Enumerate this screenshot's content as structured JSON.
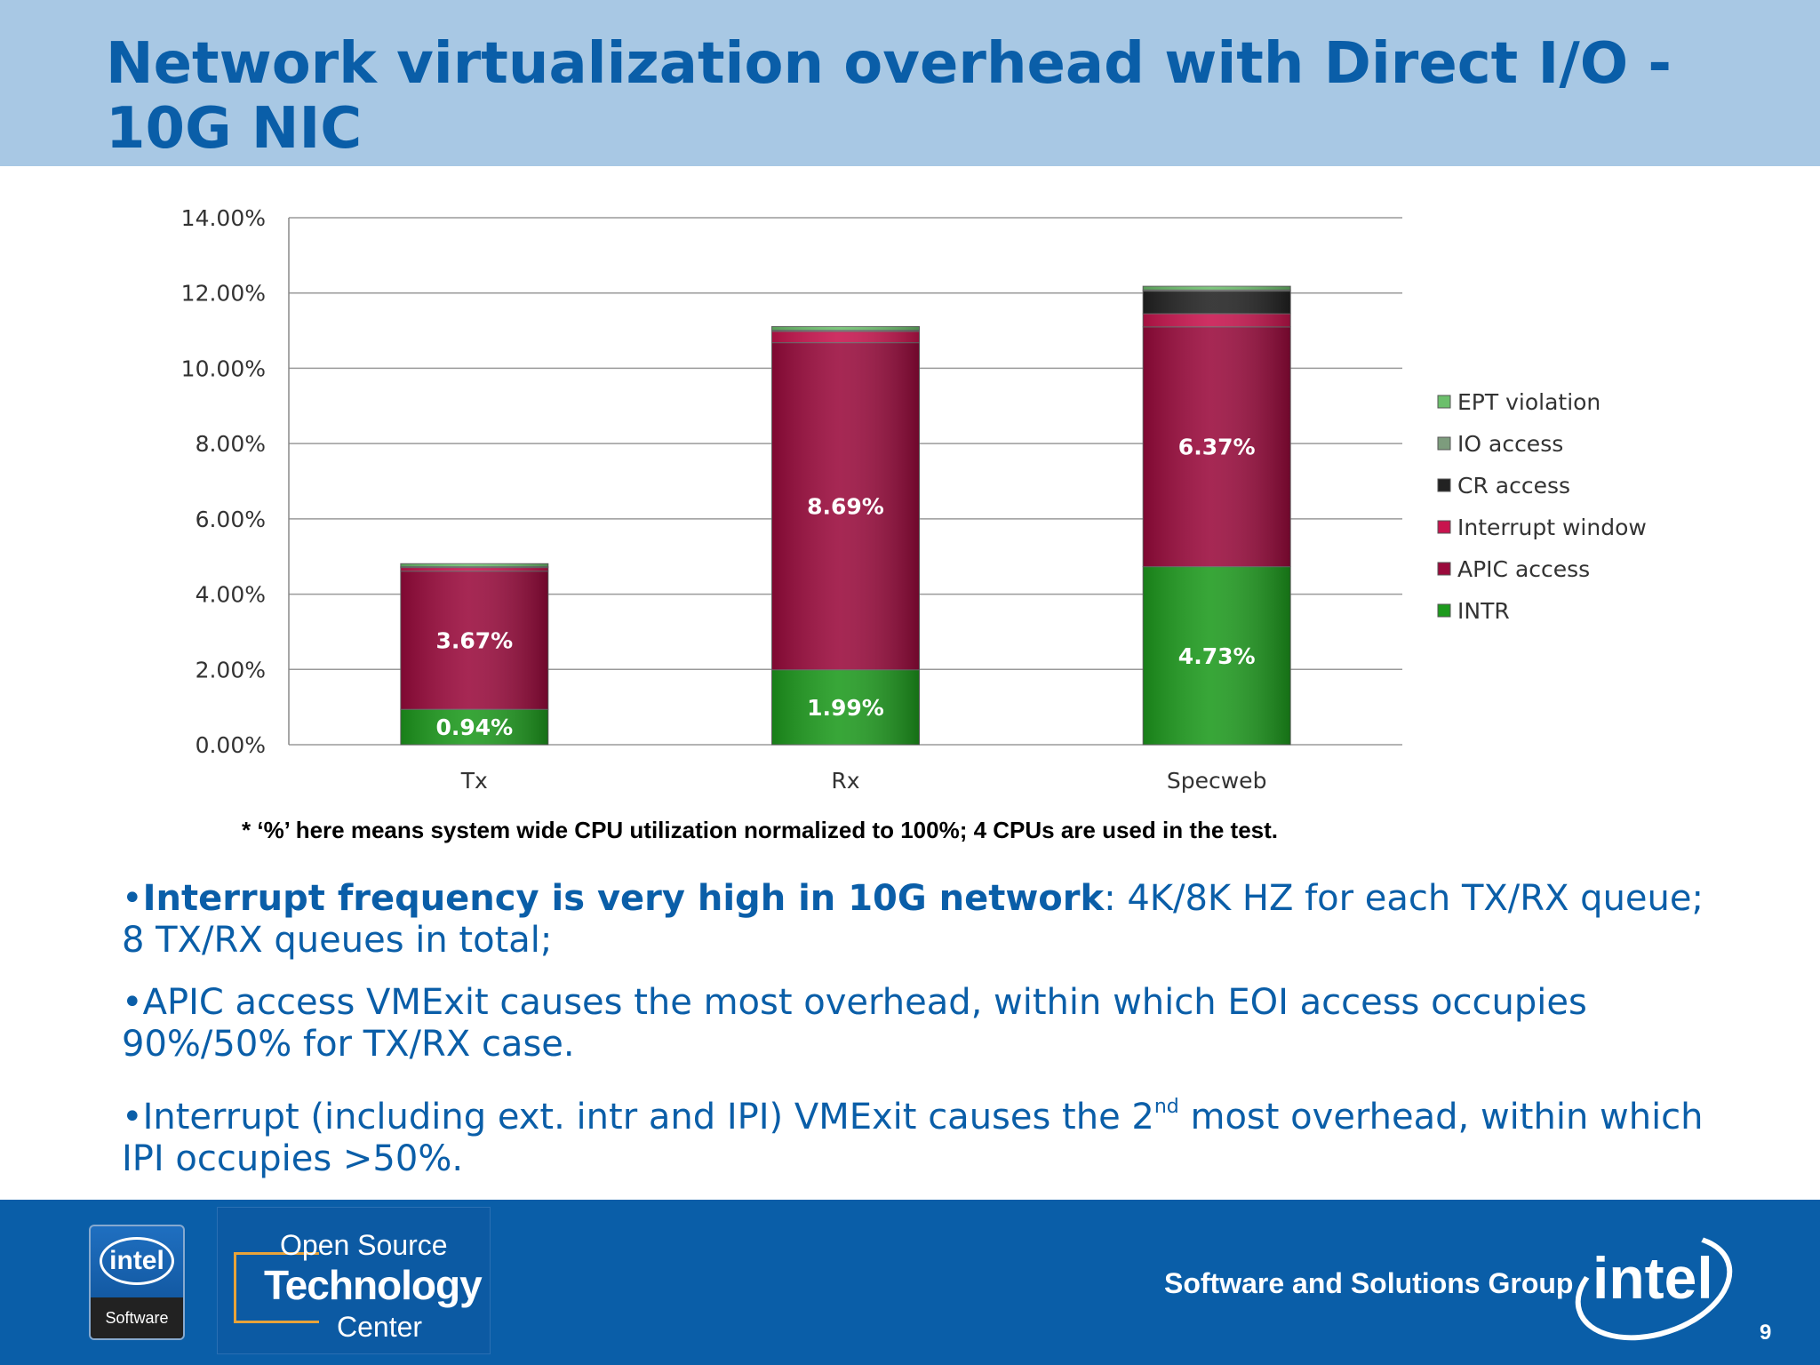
{
  "slide": {
    "title": "Network virtualization overhead with Direct I/O - 10G NIC",
    "footnote": "* ‘%’ here means system wide CPU utilization normalized to 100%; 4 CPUs are used in the test.",
    "bullets": [
      {
        "bold": "Interrupt frequency is very high in 10G network",
        "text": ": 4K/8K HZ for each TX/RX queue; 8 TX/RX queues in total;"
      },
      {
        "bold": "",
        "text": "APIC access VMExit causes the most overhead, within which EOI access occupies 90%/50% for TX/RX case."
      },
      {
        "bold": "",
        "text": "Interrupt (including ext. intr and IPI) VMExit causes the 2",
        "sup": "nd",
        "text_after": " most overhead, within which IPI occupies >50%."
      }
    ]
  },
  "footer": {
    "logo_left_word": "intel",
    "logo_left_sub": "Software",
    "ostc_line1": "Open Source",
    "ostc_line2": "Technology",
    "ostc_line3": "Center",
    "group_name": "Software and Solutions Group",
    "logo_right_word": "intel",
    "page_number": "9"
  },
  "chart_data": {
    "type": "bar",
    "stacked": true,
    "categories": [
      "Tx",
      "Rx",
      "Specweb"
    ],
    "ylim": [
      0,
      14
    ],
    "yticks": [
      0,
      2,
      4,
      6,
      8,
      10,
      12,
      14
    ],
    "ytick_labels": [
      "0.00%",
      "2.00%",
      "4.00%",
      "6.00%",
      "8.00%",
      "10.00%",
      "12.00%",
      "14.00%"
    ],
    "grid": true,
    "legend_position": "right",
    "series": [
      {
        "name": "INTR",
        "values": [
          0.94,
          1.99,
          4.73
        ],
        "labels": [
          "0.94%",
          "1.99%",
          "4.73%"
        ],
        "color": "#1d9a1d"
      },
      {
        "name": "APIC access",
        "values": [
          3.67,
          8.69,
          6.37
        ],
        "labels": [
          "3.67%",
          "8.69%",
          "6.37%"
        ],
        "color": "#9a0a3c"
      },
      {
        "name": "Interrupt window",
        "values": [
          0.1,
          0.3,
          0.35
        ],
        "labels": [
          "",
          "",
          ""
        ],
        "color": "#c8144e"
      },
      {
        "name": "CR access",
        "values": [
          0,
          0,
          0.6
        ],
        "labels": [
          "",
          "",
          ""
        ],
        "color": "#222222"
      },
      {
        "name": "IO access",
        "values": [
          0.02,
          0.03,
          0.03
        ],
        "labels": [
          "",
          "",
          ""
        ],
        "color": "#7d9c7d"
      },
      {
        "name": "EPT violation",
        "values": [
          0.08,
          0.1,
          0.1
        ],
        "labels": [
          "",
          "",
          ""
        ],
        "color": "#6cbf6c"
      }
    ]
  }
}
